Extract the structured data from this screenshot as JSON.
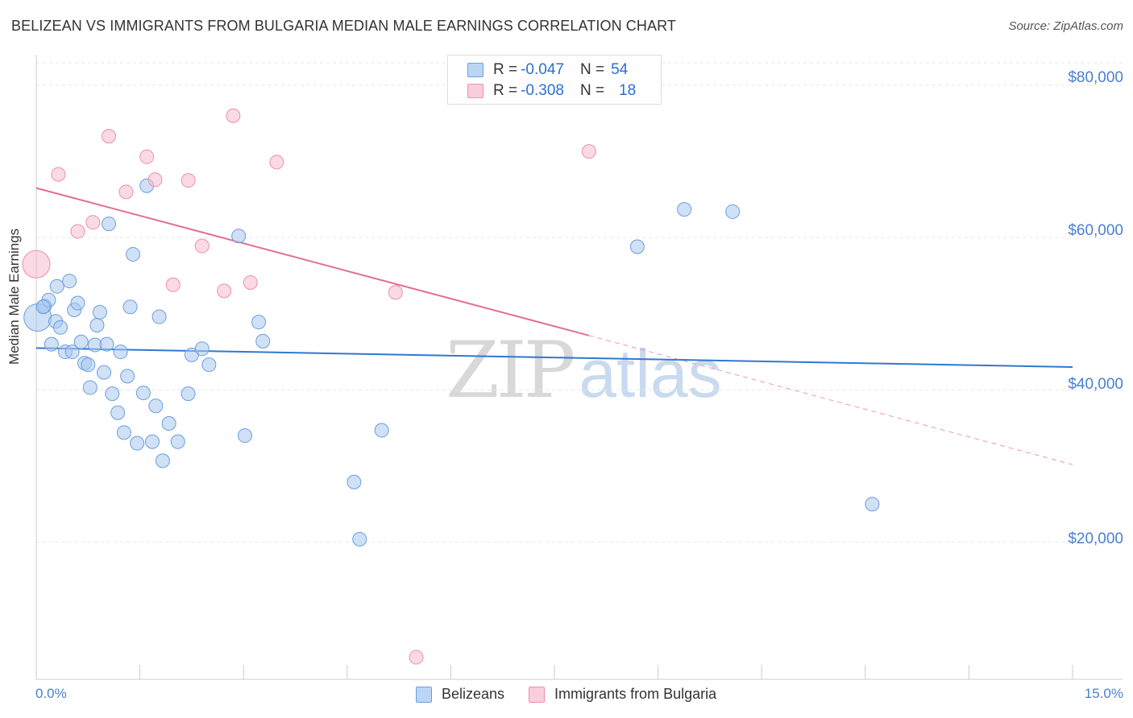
{
  "title": "BELIZEAN VS IMMIGRANTS FROM BULGARIA MEDIAN MALE EARNINGS CORRELATION CHART",
  "source": "Source: ZipAtlas.com",
  "watermark": {
    "zip": "ZIP",
    "atlas": "atlas"
  },
  "legend_top": {
    "rows": [
      {
        "r_label": "R =",
        "r_value": "-0.047",
        "n_label": "N =",
        "n_value": "54"
      },
      {
        "r_label": "R =",
        "r_value": "-0.308",
        "n_label": "N =",
        "n_value": "18"
      }
    ]
  },
  "legend_bottom": [
    "Belizeans",
    "Immigrants from Bulgaria"
  ],
  "colors": {
    "blue_fill": "#a9c8ef",
    "blue_stroke": "#6b9ee0",
    "blue_line": "#2f78d0",
    "pink_fill": "#f6bccd",
    "pink_stroke": "#ee8ead",
    "pink_line": "#e46d94",
    "grid": "#e6e6e6",
    "axis": "#cccccc",
    "tick_text": "#4a7fd0"
  },
  "chart_data": {
    "type": "scatter",
    "title": "BELIZEAN VS IMMIGRANTS FROM BULGARIA MEDIAN MALE EARNINGS CORRELATION CHART",
    "xlabel": "",
    "ylabel": "Median Male Earnings",
    "xlim": [
      0,
      15
    ],
    "ylim": [
      2000,
      84000
    ],
    "x_tick_labels": [
      "0.0%",
      "15.0%"
    ],
    "y_ticks": [
      20000,
      40000,
      60000,
      80000
    ],
    "y_tick_labels": [
      "$20,000",
      "$40,000",
      "$60,000",
      "$80,000"
    ],
    "series": [
      {
        "name": "Belizeans",
        "R": -0.047,
        "N": 54,
        "trend": {
          "x": [
            0,
            15
          ],
          "y": [
            45500,
            43000
          ],
          "dashed_from": null
        },
        "points": [
          {
            "x": 0.02,
            "y": 49500,
            "size": "large"
          },
          {
            "x": 0.12,
            "y": 51000
          },
          {
            "x": 0.18,
            "y": 51800
          },
          {
            "x": 0.22,
            "y": 46000
          },
          {
            "x": 0.28,
            "y": 49000
          },
          {
            "x": 0.3,
            "y": 53600
          },
          {
            "x": 0.35,
            "y": 48200
          },
          {
            "x": 0.42,
            "y": 45000
          },
          {
            "x": 0.48,
            "y": 54300
          },
          {
            "x": 0.52,
            "y": 45000
          },
          {
            "x": 0.55,
            "y": 50500
          },
          {
            "x": 0.6,
            "y": 51400
          },
          {
            "x": 0.65,
            "y": 46300
          },
          {
            "x": 0.7,
            "y": 43500
          },
          {
            "x": 0.75,
            "y": 43300
          },
          {
            "x": 0.78,
            "y": 40300
          },
          {
            "x": 0.85,
            "y": 45900
          },
          {
            "x": 0.88,
            "y": 48500
          },
          {
            "x": 0.92,
            "y": 50200
          },
          {
            "x": 0.98,
            "y": 42300
          },
          {
            "x": 1.02,
            "y": 46000
          },
          {
            "x": 1.05,
            "y": 61800
          },
          {
            "x": 1.1,
            "y": 39500
          },
          {
            "x": 1.18,
            "y": 37000
          },
          {
            "x": 1.22,
            "y": 45000
          },
          {
            "x": 1.27,
            "y": 34400
          },
          {
            "x": 1.32,
            "y": 41800
          },
          {
            "x": 1.36,
            "y": 50900
          },
          {
            "x": 1.4,
            "y": 57800
          },
          {
            "x": 1.46,
            "y": 33000
          },
          {
            "x": 1.55,
            "y": 39600
          },
          {
            "x": 1.6,
            "y": 66800
          },
          {
            "x": 1.68,
            "y": 33200
          },
          {
            "x": 1.73,
            "y": 37900
          },
          {
            "x": 1.78,
            "y": 49600
          },
          {
            "x": 1.83,
            "y": 30700
          },
          {
            "x": 1.92,
            "y": 35600
          },
          {
            "x": 2.05,
            "y": 33200
          },
          {
            "x": 2.2,
            "y": 39500
          },
          {
            "x": 2.25,
            "y": 44600
          },
          {
            "x": 2.4,
            "y": 45400
          },
          {
            "x": 2.5,
            "y": 43300
          },
          {
            "x": 2.93,
            "y": 60200
          },
          {
            "x": 3.02,
            "y": 34000
          },
          {
            "x": 3.28,
            "y": 46400
          },
          {
            "x": 3.22,
            "y": 48900
          },
          {
            "x": 4.6,
            "y": 27900
          },
          {
            "x": 4.68,
            "y": 20400
          },
          {
            "x": 5.0,
            "y": 34700
          },
          {
            "x": 8.7,
            "y": 58800
          },
          {
            "x": 9.38,
            "y": 63700
          },
          {
            "x": 10.08,
            "y": 63400
          },
          {
            "x": 12.1,
            "y": 25000
          },
          {
            "x": 0.1,
            "y": 50900
          }
        ]
      },
      {
        "name": "Immigrants from Bulgaria",
        "R": -0.308,
        "N": 18,
        "trend": {
          "x": [
            0,
            15
          ],
          "y": [
            66500,
            30200
          ],
          "dashed_from": 8.0
        },
        "points": [
          {
            "x": 0.0,
            "y": 56500,
            "size": "large"
          },
          {
            "x": 0.32,
            "y": 68300
          },
          {
            "x": 0.6,
            "y": 60800
          },
          {
            "x": 0.82,
            "y": 62000
          },
          {
            "x": 1.05,
            "y": 73300
          },
          {
            "x": 1.3,
            "y": 66000
          },
          {
            "x": 1.6,
            "y": 70600
          },
          {
            "x": 1.72,
            "y": 67600
          },
          {
            "x": 1.98,
            "y": 53800
          },
          {
            "x": 2.2,
            "y": 67500
          },
          {
            "x": 2.4,
            "y": 58900
          },
          {
            "x": 2.72,
            "y": 53000
          },
          {
            "x": 2.85,
            "y": 76000
          },
          {
            "x": 3.1,
            "y": 54100
          },
          {
            "x": 3.48,
            "y": 69900
          },
          {
            "x": 5.2,
            "y": 52800
          },
          {
            "x": 5.5,
            "y": 4900
          },
          {
            "x": 8.0,
            "y": 71300
          }
        ]
      }
    ]
  }
}
